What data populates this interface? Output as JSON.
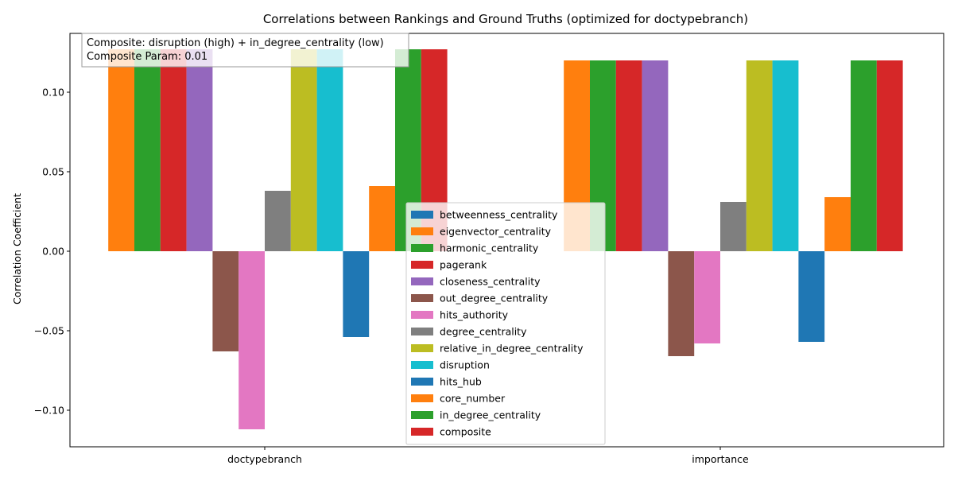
{
  "chart_data": {
    "type": "bar",
    "title": "Correlations between Rankings and Ground Truths (optimized for doctypebranch)",
    "xlabel": "",
    "ylabel": "Correlation Coefficient",
    "categories": [
      "doctypebranch",
      "importance"
    ],
    "ylim": [
      -0.123,
      0.137
    ],
    "yticks": [
      -0.1,
      -0.05,
      0.0,
      0.05,
      0.1
    ],
    "ytick_labels": [
      "−0.10",
      "−0.05",
      "0.00",
      "0.05",
      "0.10"
    ],
    "grid": false,
    "legend_position": "lower-center",
    "annotation": {
      "line1": "Composite: disruption (high) + in_degree_centrality (low)",
      "line2": "Composite Param: 0.01"
    },
    "series": [
      {
        "name": "betweenness_centrality",
        "color": "#1f77b4",
        "values": [
          0.0,
          0.0
        ]
      },
      {
        "name": "eigenvector_centrality",
        "color": "#ff7f0e",
        "values": [
          0.127,
          0.12
        ]
      },
      {
        "name": "harmonic_centrality",
        "color": "#2ca02c",
        "values": [
          0.127,
          0.12
        ]
      },
      {
        "name": "pagerank",
        "color": "#d62728",
        "values": [
          0.127,
          0.12
        ]
      },
      {
        "name": "closeness_centrality",
        "color": "#9467bd",
        "values": [
          0.127,
          0.12
        ]
      },
      {
        "name": "out_degree_centrality",
        "color": "#8c564b",
        "values": [
          -0.063,
          -0.066
        ]
      },
      {
        "name": "hits_authority",
        "color": "#e377c2",
        "values": [
          -0.112,
          -0.058
        ]
      },
      {
        "name": "degree_centrality",
        "color": "#7f7f7f",
        "values": [
          0.038,
          0.031
        ]
      },
      {
        "name": "relative_in_degree_centrality",
        "color": "#bcbd22",
        "values": [
          0.127,
          0.12
        ]
      },
      {
        "name": "disruption",
        "color": "#17becf",
        "values": [
          0.127,
          0.12
        ]
      },
      {
        "name": "hits_hub",
        "color": "#1f77b4",
        "values": [
          -0.054,
          -0.057
        ]
      },
      {
        "name": "core_number",
        "color": "#ff7f0e",
        "values": [
          0.041,
          0.034
        ]
      },
      {
        "name": "in_degree_centrality",
        "color": "#2ca02c",
        "values": [
          0.127,
          0.12
        ]
      },
      {
        "name": "composite",
        "color": "#d62728",
        "values": [
          0.127,
          0.12
        ]
      }
    ]
  }
}
